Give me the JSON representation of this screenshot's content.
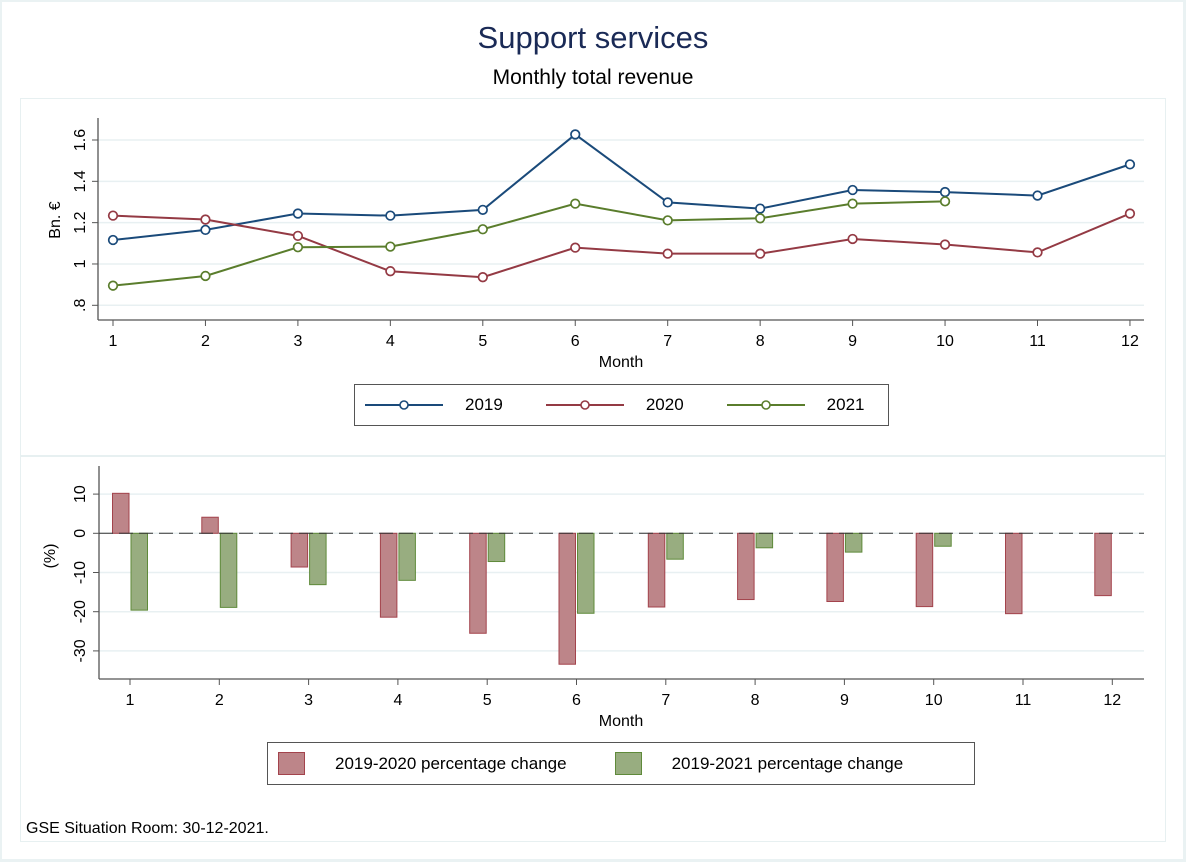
{
  "title": "Support services",
  "subtitle": "Monthly total revenue",
  "footnote": "GSE Situation Room: 30-12-2021.",
  "colors": {
    "series_2019": "#1a4a7a",
    "series_2020": "#943a44",
    "series_2021": "#5a7d2c",
    "bar_2020_fill": "#bd8589",
    "bar_2020_stroke": "#a3434c",
    "bar_2021_fill": "#98ad80",
    "bar_2021_stroke": "#5f8a3a",
    "title": "#1a2a56",
    "grid": "#e8f0f2"
  },
  "chart_data": [
    {
      "type": "line",
      "title": "Monthly total revenue",
      "xlabel": "Month",
      "ylabel": "Bn. €",
      "x": [
        1,
        2,
        3,
        4,
        5,
        6,
        7,
        8,
        9,
        10,
        11,
        12
      ],
      "xticks": [
        "1",
        "2",
        "3",
        "4",
        "5",
        "6",
        "7",
        "8",
        "9",
        "10",
        "11",
        "12"
      ],
      "ylim": [
        0.73,
        1.68
      ],
      "yticks": [
        0.8,
        1.0,
        1.2,
        1.4,
        1.6
      ],
      "ytick_labels": [
        ".8",
        "1",
        "1.2",
        "1.4",
        "1.6"
      ],
      "grid": true,
      "legend_position": "bottom",
      "series": [
        {
          "name": "2019",
          "values": [
            1.116,
            1.165,
            1.244,
            1.234,
            1.262,
            1.627,
            1.298,
            1.268,
            1.358,
            1.348,
            1.331,
            1.482
          ]
        },
        {
          "name": "2020",
          "values": [
            1.234,
            1.215,
            1.136,
            0.965,
            0.936,
            1.079,
            1.05,
            1.05,
            1.121,
            1.094,
            1.056,
            1.244
          ]
        },
        {
          "name": "2021",
          "values": [
            0.895,
            0.942,
            1.081,
            1.084,
            1.168,
            1.292,
            1.211,
            1.221,
            1.292,
            1.303,
            null,
            null
          ]
        }
      ]
    },
    {
      "type": "bar",
      "xlabel": "Month",
      "ylabel": "(%)",
      "categories": [
        "1",
        "2",
        "3",
        "4",
        "5",
        "6",
        "7",
        "8",
        "9",
        "10",
        "11",
        "12"
      ],
      "ylim": [
        -37,
        14
      ],
      "yticks": [
        10,
        0,
        -10,
        -20,
        -30
      ],
      "ytick_labels": [
        "10",
        "0",
        "-10",
        "-20",
        "-30"
      ],
      "grid": true,
      "reference_line": 0,
      "legend_position": "bottom",
      "series": [
        {
          "name": "2019-2020 percentage change",
          "values": [
            10.2,
            4.1,
            -8.6,
            -21.4,
            -25.5,
            -33.4,
            -18.8,
            -16.9,
            -17.4,
            -18.7,
            -20.5,
            -15.9
          ]
        },
        {
          "name": "2019-2021 percentage change",
          "values": [
            -19.6,
            -18.9,
            -13.1,
            -12.0,
            -7.2,
            -20.4,
            -6.6,
            -3.7,
            -4.8,
            -3.3,
            null,
            null
          ]
        }
      ]
    }
  ]
}
